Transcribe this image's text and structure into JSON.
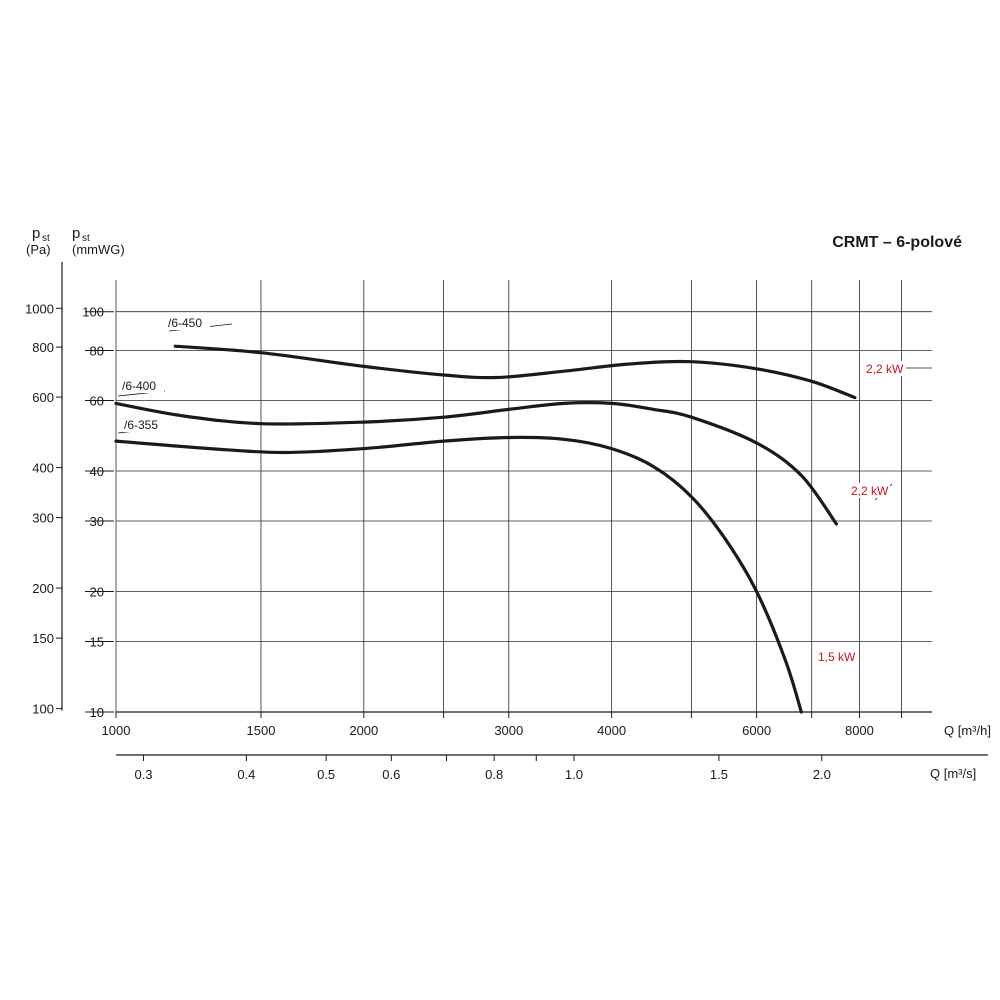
{
  "chart_data": {
    "type": "line",
    "title": "CRMT – 6-polové",
    "y_left_symbol": "p",
    "y_left_subscript": "st",
    "y_left_unit": "(Pa)",
    "y_right_symbol": "p",
    "y_right_subscript": "st",
    "y_right_unit": "(mmWG)",
    "xlabel": "Q [m³/h]",
    "xlabel2": "Q [m³/s]",
    "x_scale": "log",
    "y_scale": "log",
    "xlim": [
      1000,
      9800
    ],
    "ylim_mmwg": [
      10,
      120
    ],
    "x_ticks": [
      {
        "value": 1000,
        "label": "1000"
      },
      {
        "value": 1500,
        "label": "1500"
      },
      {
        "value": 2000,
        "label": "2000"
      },
      {
        "value": 3000,
        "label": "3000"
      },
      {
        "value": 4000,
        "label": "4000"
      },
      {
        "value": 6000,
        "label": "6000"
      },
      {
        "value": 8000,
        "label": "8000"
      }
    ],
    "x_minor_ticks": [
      2500,
      5000,
      7000,
      9000
    ],
    "x2_ticks": [
      {
        "value": 1080,
        "label": "0.3"
      },
      {
        "value": 1440,
        "label": "0.4"
      },
      {
        "value": 1800,
        "label": "0.5"
      },
      {
        "value": 2160,
        "label": "0.6"
      },
      {
        "value": 2880,
        "label": "0.8"
      },
      {
        "value": 3600,
        "label": "1.0"
      },
      {
        "value": 5400,
        "label": "1.5"
      },
      {
        "value": 7200,
        "label": "2.0"
      }
    ],
    "x2_minor_ticks": [
      2520,
      3240
    ],
    "y_mmwg_ticks": [
      {
        "value": 10,
        "label": "10"
      },
      {
        "value": 15,
        "label": "15"
      },
      {
        "value": 20,
        "label": "20"
      },
      {
        "value": 30,
        "label": "30"
      },
      {
        "value": 40,
        "label": "40"
      },
      {
        "value": 60,
        "label": "60"
      },
      {
        "value": 80,
        "label": "80"
      },
      {
        "value": 100,
        "label": "100"
      }
    ],
    "y_pa_ticks": [
      {
        "value": 100,
        "label": "100"
      },
      {
        "value": 150,
        "label": "150"
      },
      {
        "value": 200,
        "label": "200"
      },
      {
        "value": 300,
        "label": "300"
      },
      {
        "value": 400,
        "label": "400"
      },
      {
        "value": 600,
        "label": "600"
      },
      {
        "value": 800,
        "label": "800"
      },
      {
        "value": 1000,
        "label": "1000"
      }
    ],
    "grid": true,
    "series": [
      {
        "name": "/6-450",
        "power": "2,2 kW",
        "x": [
          1180,
          1500,
          2000,
          2500,
          2900,
          3500,
          4200,
          5000,
          6000,
          7000,
          7900
        ],
        "y": [
          82,
          79,
          73,
          69.5,
          68.5,
          71,
          74,
          75,
          72,
          67,
          61
        ]
      },
      {
        "name": "/6-400",
        "power": "2,2 kW",
        "x": [
          1000,
          1200,
          1500,
          2000,
          2500,
          3000,
          3500,
          4000,
          4500,
          5000,
          6000,
          6800,
          7500
        ],
        "y": [
          59,
          55,
          52.5,
          53,
          54.5,
          57,
          59,
          59,
          57,
          54.5,
          47,
          39,
          29.5
        ]
      },
      {
        "name": "/6-355",
        "power": "1,5 kW",
        "x": [
          1000,
          1300,
          1600,
          2000,
          2500,
          3000,
          3500,
          4000,
          4500,
          5000,
          5500,
          6000,
          6500,
          6800
        ],
        "y": [
          47.5,
          45.5,
          44.5,
          45.5,
          47.5,
          48.5,
          48,
          45.5,
          41,
          34.5,
          27,
          20,
          13.5,
          10
        ]
      }
    ]
  }
}
